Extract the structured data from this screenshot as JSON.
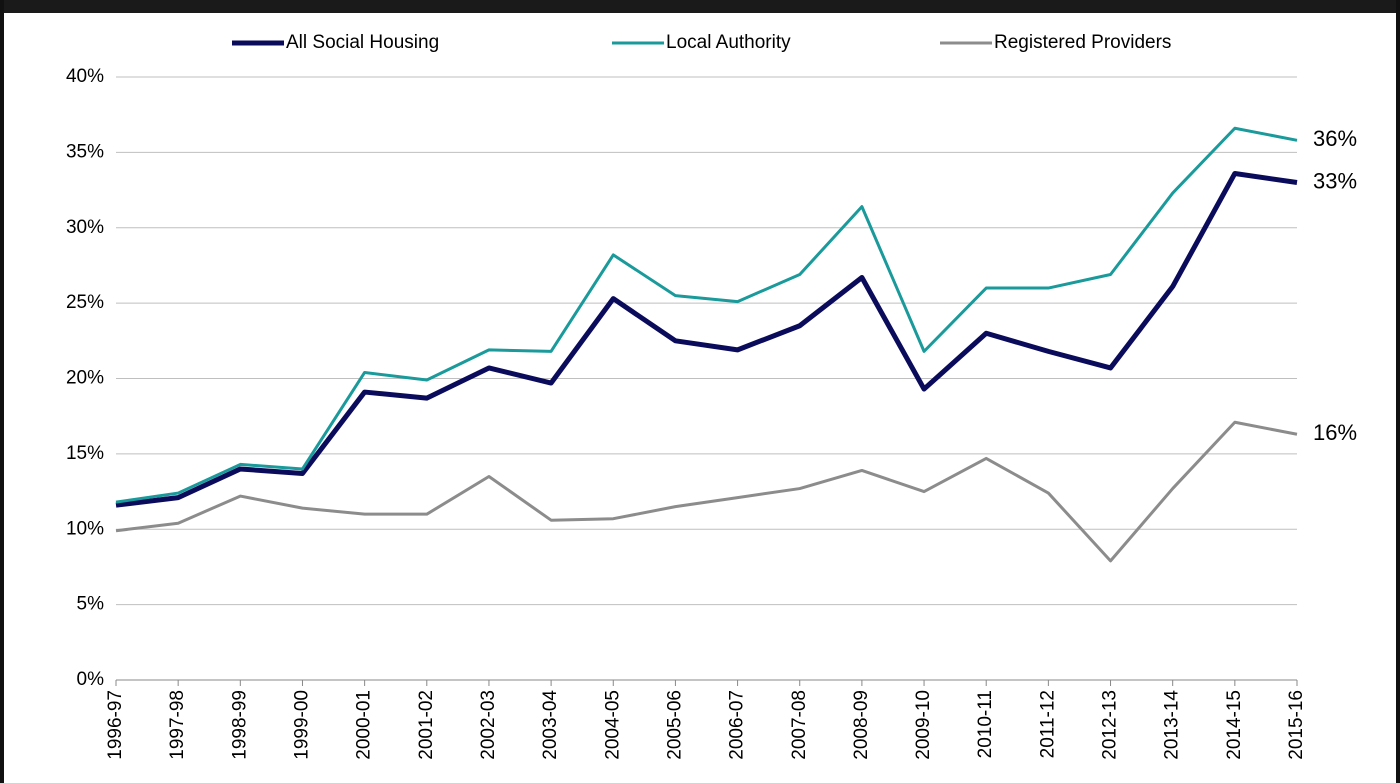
{
  "chart_data": {
    "type": "line",
    "categories": [
      "1996-97",
      "1997-98",
      "1998-99",
      "1999-00",
      "2000-01",
      "2001-02",
      "2002-03",
      "2003-04",
      "2004-05",
      "2005-06",
      "2006-07",
      "2007-08",
      "2008-09",
      "2009-10",
      "2010-11",
      "2011-12",
      "2012-13",
      "2013-14",
      "2014-15",
      "2015-16"
    ],
    "series": [
      {
        "name": "All Social Housing",
        "color": "#0b0b5c",
        "values": [
          11.6,
          12.1,
          14.0,
          13.7,
          19.1,
          18.7,
          20.7,
          19.7,
          25.3,
          22.5,
          21.9,
          23.5,
          26.7,
          19.3,
          23.0,
          21.8,
          20.7,
          26.1,
          33.6,
          33.0
        ],
        "value_labels": [
          null,
          null,
          null,
          null,
          null,
          null,
          null,
          null,
          null,
          null,
          null,
          null,
          null,
          null,
          null,
          null,
          null,
          null,
          null,
          "33%"
        ]
      },
      {
        "name": "Local Authority",
        "color": "#1a9a9a",
        "values": [
          11.8,
          12.4,
          14.3,
          14.0,
          20.4,
          19.9,
          21.9,
          21.8,
          28.2,
          25.5,
          25.1,
          26.9,
          31.4,
          21.8,
          26.0,
          26.0,
          26.9,
          32.3,
          36.6,
          35.8
        ],
        "value_labels": [
          null,
          null,
          null,
          null,
          null,
          null,
          null,
          null,
          null,
          null,
          null,
          null,
          null,
          null,
          null,
          null,
          null,
          null,
          null,
          "36%"
        ]
      },
      {
        "name": "Registered Providers",
        "color": "#8c8c8c",
        "values": [
          9.9,
          10.4,
          12.2,
          11.4,
          11.0,
          11.0,
          13.5,
          10.6,
          10.7,
          11.5,
          12.1,
          12.7,
          13.9,
          12.5,
          14.7,
          12.4,
          7.9,
          12.7,
          17.1,
          16.3
        ],
        "value_labels": [
          null,
          null,
          null,
          null,
          null,
          null,
          null,
          null,
          null,
          null,
          null,
          null,
          null,
          null,
          null,
          null,
          null,
          null,
          null,
          "16%"
        ]
      }
    ],
    "ylim": [
      0,
      40
    ],
    "yticks": [
      {
        "value": 0,
        "label": "0%"
      },
      {
        "value": 5,
        "label": "5%"
      },
      {
        "value": 10,
        "label": "10%"
      },
      {
        "value": 15,
        "label": "15%"
      },
      {
        "value": 20,
        "label": "20%"
      },
      {
        "value": 25,
        "label": "25%"
      },
      {
        "value": 30,
        "label": "30%"
      },
      {
        "value": 35,
        "label": "35%"
      },
      {
        "value": 40,
        "label": "40%"
      }
    ],
    "grid": true,
    "legend": "top"
  }
}
